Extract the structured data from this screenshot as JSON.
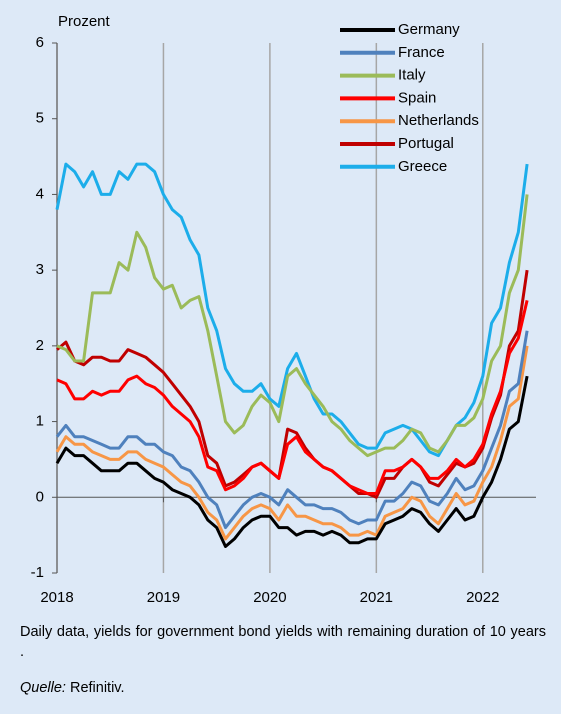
{
  "chart_data": {
    "type": "line",
    "y_label": "Prozent",
    "x": [
      2018.0,
      2018.0833,
      2018.1667,
      2018.25,
      2018.3333,
      2018.4167,
      2018.5,
      2018.5833,
      2018.6667,
      2018.75,
      2018.8333,
      2018.9167,
      2019.0,
      2019.0833,
      2019.1667,
      2019.25,
      2019.3333,
      2019.4167,
      2019.5,
      2019.5833,
      2019.6667,
      2019.75,
      2019.8333,
      2019.9167,
      2020.0,
      2020.0833,
      2020.1667,
      2020.25,
      2020.3333,
      2020.4167,
      2020.5,
      2020.5833,
      2020.6667,
      2020.75,
      2020.8333,
      2020.9167,
      2021.0,
      2021.0833,
      2021.1667,
      2021.25,
      2021.3333,
      2021.4167,
      2021.5,
      2021.5833,
      2021.6667,
      2021.75,
      2021.8333,
      2021.9167,
      2022.0,
      2022.0833,
      2022.1667,
      2022.25,
      2022.3333,
      2022.4167
    ],
    "series": [
      {
        "name": "Germany",
        "color": "#000000",
        "values": [
          0.45,
          0.65,
          0.55,
          0.55,
          0.45,
          0.35,
          0.35,
          0.35,
          0.45,
          0.45,
          0.35,
          0.25,
          0.2,
          0.1,
          0.05,
          0.0,
          -0.1,
          -0.3,
          -0.4,
          -0.65,
          -0.55,
          -0.4,
          -0.3,
          -0.25,
          -0.25,
          -0.4,
          -0.4,
          -0.5,
          -0.45,
          -0.45,
          -0.5,
          -0.45,
          -0.5,
          -0.6,
          -0.6,
          -0.55,
          -0.55,
          -0.35,
          -0.3,
          -0.25,
          -0.15,
          -0.2,
          -0.35,
          -0.45,
          -0.3,
          -0.15,
          -0.3,
          -0.25,
          0.0,
          0.2,
          0.5,
          0.9,
          1.0,
          1.6
        ]
      },
      {
        "name": "France",
        "color": "#4f81bd",
        "values": [
          0.8,
          0.95,
          0.8,
          0.8,
          0.75,
          0.7,
          0.65,
          0.65,
          0.8,
          0.8,
          0.7,
          0.7,
          0.6,
          0.55,
          0.4,
          0.35,
          0.2,
          0.0,
          -0.1,
          -0.4,
          -0.25,
          -0.1,
          0.0,
          0.05,
          0.0,
          -0.1,
          0.1,
          0.0,
          -0.1,
          -0.1,
          -0.15,
          -0.15,
          -0.2,
          -0.3,
          -0.35,
          -0.3,
          -0.3,
          -0.05,
          -0.05,
          0.05,
          0.2,
          0.15,
          -0.05,
          -0.1,
          0.05,
          0.25,
          0.1,
          0.15,
          0.35,
          0.65,
          0.95,
          1.4,
          1.5,
          2.2
        ]
      },
      {
        "name": "Italy",
        "color": "#9bbb59",
        "values": [
          2.0,
          1.95,
          1.8,
          1.8,
          2.7,
          2.7,
          2.7,
          3.1,
          3.0,
          3.5,
          3.3,
          2.9,
          2.75,
          2.8,
          2.5,
          2.6,
          2.65,
          2.2,
          1.6,
          1.0,
          0.85,
          0.95,
          1.2,
          1.35,
          1.25,
          1.0,
          1.6,
          1.7,
          1.5,
          1.35,
          1.2,
          1.0,
          0.9,
          0.75,
          0.65,
          0.55,
          0.6,
          0.65,
          0.65,
          0.75,
          0.9,
          0.85,
          0.65,
          0.6,
          0.75,
          0.95,
          0.95,
          1.05,
          1.3,
          1.8,
          2.0,
          2.7,
          3.0,
          4.0
        ]
      },
      {
        "name": "Spain",
        "color": "#ff0000",
        "values": [
          1.55,
          1.5,
          1.3,
          1.3,
          1.4,
          1.35,
          1.4,
          1.4,
          1.55,
          1.6,
          1.5,
          1.45,
          1.35,
          1.2,
          1.1,
          1.0,
          0.8,
          0.4,
          0.35,
          0.1,
          0.15,
          0.25,
          0.4,
          0.45,
          0.35,
          0.25,
          0.7,
          0.8,
          0.6,
          0.5,
          0.4,
          0.35,
          0.25,
          0.15,
          0.1,
          0.05,
          0.05,
          0.35,
          0.35,
          0.4,
          0.5,
          0.4,
          0.25,
          0.25,
          0.35,
          0.5,
          0.4,
          0.5,
          0.7,
          1.1,
          1.4,
          1.9,
          2.1,
          2.6
        ]
      },
      {
        "name": "Netherlands",
        "color": "#f79646",
        "values": [
          0.6,
          0.8,
          0.7,
          0.7,
          0.6,
          0.55,
          0.5,
          0.5,
          0.6,
          0.6,
          0.5,
          0.45,
          0.4,
          0.3,
          0.2,
          0.15,
          0.0,
          -0.2,
          -0.3,
          -0.55,
          -0.4,
          -0.25,
          -0.15,
          -0.1,
          -0.15,
          -0.3,
          -0.1,
          -0.25,
          -0.25,
          -0.3,
          -0.35,
          -0.35,
          -0.4,
          -0.5,
          -0.5,
          -0.45,
          -0.5,
          -0.25,
          -0.2,
          -0.15,
          0.0,
          -0.05,
          -0.25,
          -0.35,
          -0.15,
          0.05,
          -0.1,
          -0.05,
          0.2,
          0.4,
          0.75,
          1.2,
          1.3,
          2.0
        ]
      },
      {
        "name": "Portugal",
        "color": "#c00000",
        "values": [
          1.95,
          2.05,
          1.8,
          1.75,
          1.85,
          1.85,
          1.8,
          1.8,
          1.95,
          1.9,
          1.85,
          1.75,
          1.65,
          1.5,
          1.35,
          1.2,
          1.0,
          0.55,
          0.45,
          0.15,
          0.2,
          0.3,
          0.4,
          0.45,
          0.35,
          0.25,
          0.9,
          0.85,
          0.65,
          0.5,
          0.4,
          0.35,
          0.25,
          0.15,
          0.05,
          0.05,
          0.0,
          0.25,
          0.25,
          0.4,
          0.5,
          0.4,
          0.2,
          0.15,
          0.3,
          0.45,
          0.4,
          0.45,
          0.65,
          1.05,
          1.35,
          2.0,
          2.2,
          3.0
        ]
      },
      {
        "name": "Greece",
        "color": "#1cadea",
        "values": [
          3.8,
          4.4,
          4.3,
          4.1,
          4.3,
          4.0,
          4.0,
          4.3,
          4.2,
          4.4,
          4.4,
          4.3,
          4.0,
          3.8,
          3.7,
          3.4,
          3.2,
          2.5,
          2.2,
          1.7,
          1.5,
          1.4,
          1.4,
          1.5,
          1.3,
          1.2,
          1.7,
          1.9,
          1.6,
          1.3,
          1.1,
          1.1,
          1.0,
          0.85,
          0.7,
          0.65,
          0.65,
          0.85,
          0.9,
          0.95,
          0.9,
          0.75,
          0.6,
          0.55,
          0.75,
          0.95,
          1.05,
          1.25,
          1.6,
          2.3,
          2.5,
          3.1,
          3.5,
          4.4
        ]
      }
    ],
    "xlim": [
      2018,
      2022.5
    ],
    "xticks": [
      2018,
      2019,
      2020,
      2021,
      2022
    ],
    "ylim": [
      -1,
      6
    ],
    "yticks": [
      -1,
      0,
      1,
      2,
      3,
      4,
      5,
      6
    ],
    "grid": "x",
    "legend": "top-right",
    "note": "Daily data, yields for government bond yields with remaining duration of 10 years .",
    "source_label": "Quelle:",
    "source": "Refinitiv."
  }
}
